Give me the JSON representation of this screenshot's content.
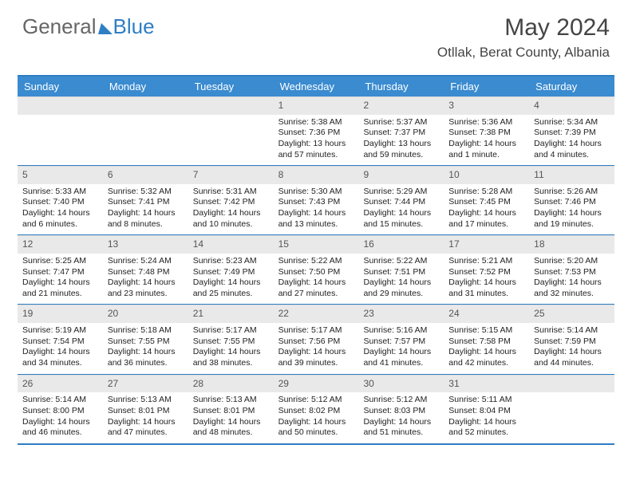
{
  "brand": {
    "part1": "General",
    "part2": "Blue"
  },
  "title": "May 2024",
  "location": "Otllak, Berat County, Albania",
  "colors": {
    "accent": "#3a8bd0",
    "rule": "#2e7ec4",
    "daynum_bg": "#e9e9e9"
  },
  "day_headers": [
    "Sunday",
    "Monday",
    "Tuesday",
    "Wednesday",
    "Thursday",
    "Friday",
    "Saturday"
  ],
  "weeks": [
    [
      {
        "n": "",
        "sr": "",
        "ss": "",
        "dl": ""
      },
      {
        "n": "",
        "sr": "",
        "ss": "",
        "dl": ""
      },
      {
        "n": "",
        "sr": "",
        "ss": "",
        "dl": ""
      },
      {
        "n": "1",
        "sr": "5:38 AM",
        "ss": "7:36 PM",
        "dl": "13 hours and 57 minutes."
      },
      {
        "n": "2",
        "sr": "5:37 AM",
        "ss": "7:37 PM",
        "dl": "13 hours and 59 minutes."
      },
      {
        "n": "3",
        "sr": "5:36 AM",
        "ss": "7:38 PM",
        "dl": "14 hours and 1 minute."
      },
      {
        "n": "4",
        "sr": "5:34 AM",
        "ss": "7:39 PM",
        "dl": "14 hours and 4 minutes."
      }
    ],
    [
      {
        "n": "5",
        "sr": "5:33 AM",
        "ss": "7:40 PM",
        "dl": "14 hours and 6 minutes."
      },
      {
        "n": "6",
        "sr": "5:32 AM",
        "ss": "7:41 PM",
        "dl": "14 hours and 8 minutes."
      },
      {
        "n": "7",
        "sr": "5:31 AM",
        "ss": "7:42 PM",
        "dl": "14 hours and 10 minutes."
      },
      {
        "n": "8",
        "sr": "5:30 AM",
        "ss": "7:43 PM",
        "dl": "14 hours and 13 minutes."
      },
      {
        "n": "9",
        "sr": "5:29 AM",
        "ss": "7:44 PM",
        "dl": "14 hours and 15 minutes."
      },
      {
        "n": "10",
        "sr": "5:28 AM",
        "ss": "7:45 PM",
        "dl": "14 hours and 17 minutes."
      },
      {
        "n": "11",
        "sr": "5:26 AM",
        "ss": "7:46 PM",
        "dl": "14 hours and 19 minutes."
      }
    ],
    [
      {
        "n": "12",
        "sr": "5:25 AM",
        "ss": "7:47 PM",
        "dl": "14 hours and 21 minutes."
      },
      {
        "n": "13",
        "sr": "5:24 AM",
        "ss": "7:48 PM",
        "dl": "14 hours and 23 minutes."
      },
      {
        "n": "14",
        "sr": "5:23 AM",
        "ss": "7:49 PM",
        "dl": "14 hours and 25 minutes."
      },
      {
        "n": "15",
        "sr": "5:22 AM",
        "ss": "7:50 PM",
        "dl": "14 hours and 27 minutes."
      },
      {
        "n": "16",
        "sr": "5:22 AM",
        "ss": "7:51 PM",
        "dl": "14 hours and 29 minutes."
      },
      {
        "n": "17",
        "sr": "5:21 AM",
        "ss": "7:52 PM",
        "dl": "14 hours and 31 minutes."
      },
      {
        "n": "18",
        "sr": "5:20 AM",
        "ss": "7:53 PM",
        "dl": "14 hours and 32 minutes."
      }
    ],
    [
      {
        "n": "19",
        "sr": "5:19 AM",
        "ss": "7:54 PM",
        "dl": "14 hours and 34 minutes."
      },
      {
        "n": "20",
        "sr": "5:18 AM",
        "ss": "7:55 PM",
        "dl": "14 hours and 36 minutes."
      },
      {
        "n": "21",
        "sr": "5:17 AM",
        "ss": "7:55 PM",
        "dl": "14 hours and 38 minutes."
      },
      {
        "n": "22",
        "sr": "5:17 AM",
        "ss": "7:56 PM",
        "dl": "14 hours and 39 minutes."
      },
      {
        "n": "23",
        "sr": "5:16 AM",
        "ss": "7:57 PM",
        "dl": "14 hours and 41 minutes."
      },
      {
        "n": "24",
        "sr": "5:15 AM",
        "ss": "7:58 PM",
        "dl": "14 hours and 42 minutes."
      },
      {
        "n": "25",
        "sr": "5:14 AM",
        "ss": "7:59 PM",
        "dl": "14 hours and 44 minutes."
      }
    ],
    [
      {
        "n": "26",
        "sr": "5:14 AM",
        "ss": "8:00 PM",
        "dl": "14 hours and 46 minutes."
      },
      {
        "n": "27",
        "sr": "5:13 AM",
        "ss": "8:01 PM",
        "dl": "14 hours and 47 minutes."
      },
      {
        "n": "28",
        "sr": "5:13 AM",
        "ss": "8:01 PM",
        "dl": "14 hours and 48 minutes."
      },
      {
        "n": "29",
        "sr": "5:12 AM",
        "ss": "8:02 PM",
        "dl": "14 hours and 50 minutes."
      },
      {
        "n": "30",
        "sr": "5:12 AM",
        "ss": "8:03 PM",
        "dl": "14 hours and 51 minutes."
      },
      {
        "n": "31",
        "sr": "5:11 AM",
        "ss": "8:04 PM",
        "dl": "14 hours and 52 minutes."
      },
      {
        "n": "",
        "sr": "",
        "ss": "",
        "dl": ""
      }
    ]
  ],
  "labels": {
    "sunrise": "Sunrise: ",
    "sunset": "Sunset: ",
    "daylight": "Daylight: "
  }
}
